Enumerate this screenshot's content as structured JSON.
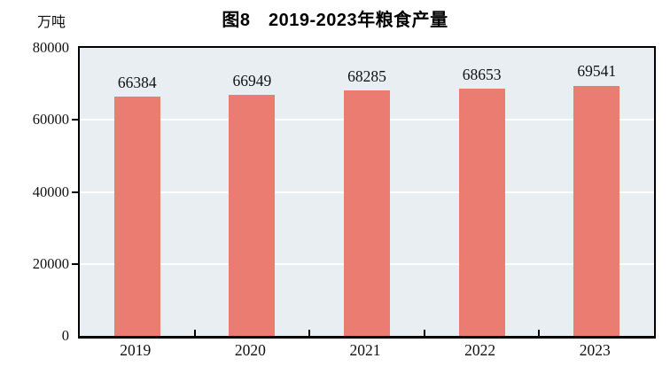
{
  "figure": {
    "title": "图8　2019-2023年粮食产量",
    "unit_label": "万吨"
  },
  "chart_data": {
    "type": "bar",
    "title": "图8 2019-2023年粮食产量",
    "categories": [
      "2019",
      "2020",
      "2021",
      "2022",
      "2023"
    ],
    "values": [
      66384,
      66949,
      68285,
      68653,
      69541
    ],
    "xlabel": "",
    "ylabel": "万吨",
    "ylim": [
      0,
      80000
    ],
    "yticks": [
      0,
      20000,
      40000,
      60000,
      80000
    ],
    "grid": "horizontal",
    "legend_position": "none",
    "colors": {
      "bar": "#eb7c72",
      "plot_background": "#e9eef2",
      "gridline": "#ffffff",
      "axis": "#000000",
      "text": "#111111"
    }
  }
}
